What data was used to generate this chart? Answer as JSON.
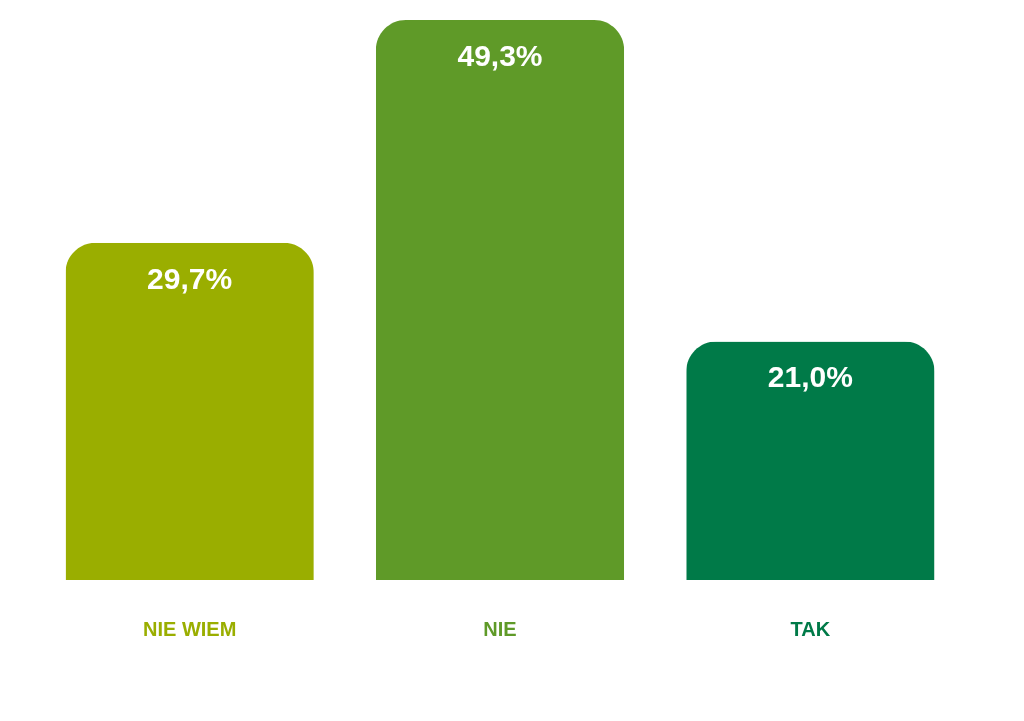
{
  "chart_data": {
    "type": "bar",
    "categories": [
      "NIE WIEM",
      "NIE",
      "TAK"
    ],
    "values": [
      29.7,
      49.3,
      21.0
    ],
    "value_labels": [
      "29,7%",
      "49,3%",
      "21,0%"
    ],
    "colors": [
      "#9aae00",
      "#5f9a28",
      "#007a48"
    ]
  }
}
